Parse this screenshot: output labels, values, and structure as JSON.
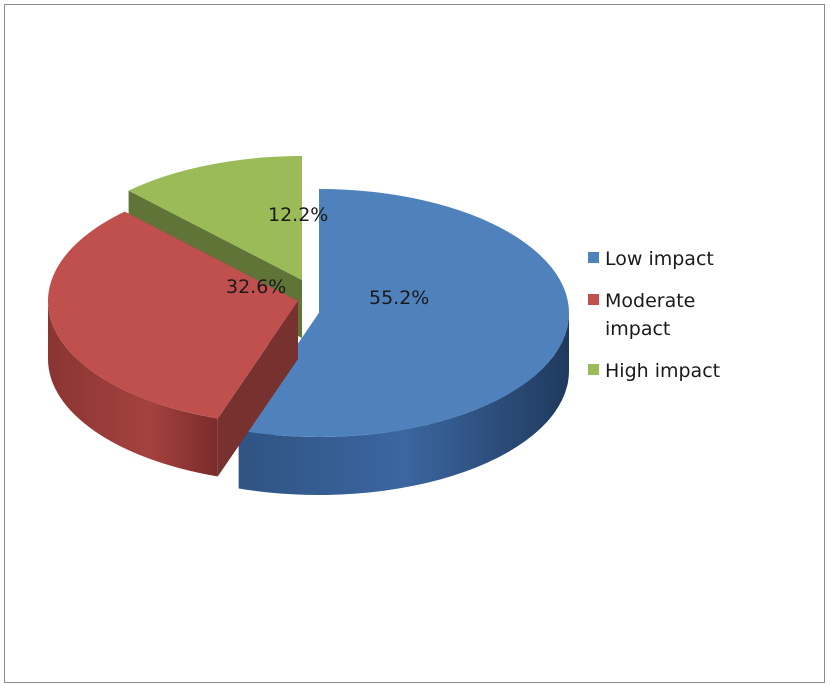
{
  "chart_data": {
    "type": "pie",
    "style": "3d-exploded",
    "title": "",
    "categories": [
      "Low impact",
      "Moderate impact",
      "High impact"
    ],
    "values": [
      55.2,
      32.6,
      12.2
    ],
    "value_labels": [
      "55.2%",
      "32.6%",
      "12.2%"
    ],
    "unit": "%",
    "colors": [
      "#4F81BD",
      "#C0504D",
      "#9BBB59"
    ],
    "legend_position": "right"
  }
}
